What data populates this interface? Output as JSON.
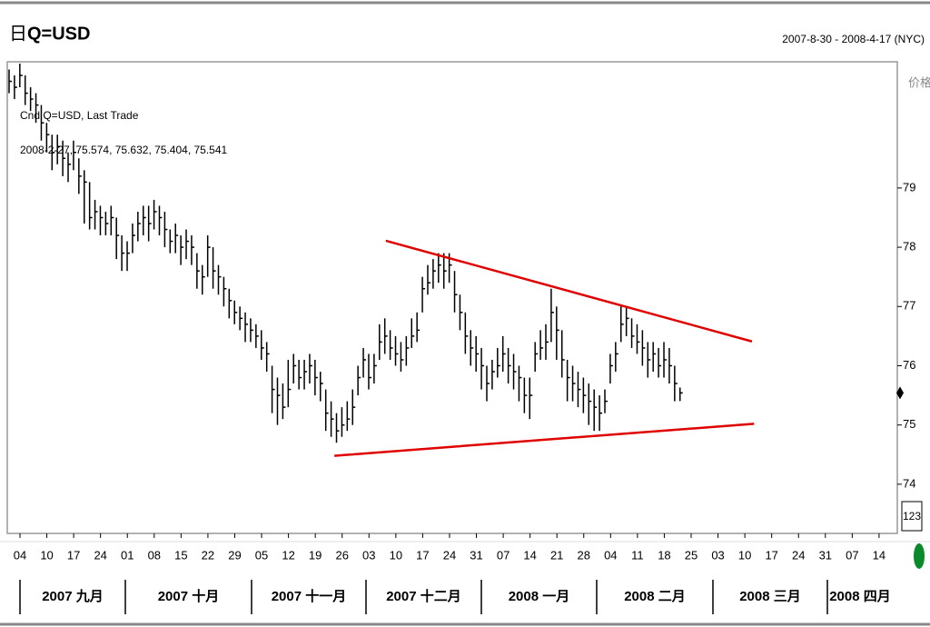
{
  "header": {
    "period_icon": "日",
    "symbol": "Q=USD",
    "date_range": "2007-8-30 - 2008-4-17 (NYC)"
  },
  "chart_data": {
    "type": "ohlc",
    "legend_title": "Cnd Q=USD, Last Trade",
    "legend_values": "2008-2-27, 75.574, 75.632, 75.404, 75.541",
    "y_axis_label": "价格",
    "scale_button": "123",
    "color": "#000000",
    "ylim": [
      73.17,
      81.13
    ],
    "yticks": [
      74,
      75,
      76,
      77,
      78,
      79
    ],
    "x_week_labels": [
      "04",
      "10",
      "17",
      "24",
      "01",
      "08",
      "15",
      "22",
      "29",
      "05",
      "12",
      "19",
      "26",
      "03",
      "10",
      "17",
      "24",
      "31",
      "07",
      "14",
      "21",
      "28",
      "04",
      "11",
      "18",
      "25",
      "03",
      "10",
      "17",
      "24",
      "31",
      "07",
      "14"
    ],
    "x_month_labels": [
      "2007 九月",
      "2007 十月",
      "2007 十一月",
      "2007 十二月",
      "2008 一月",
      "2008 二月",
      "2008 三月",
      "2008 四月"
    ],
    "high": [
      81.0,
      80.9,
      81.1,
      80.9,
      80.7,
      80.6,
      80.4,
      80.1,
      79.9,
      79.9,
      79.8,
      79.6,
      79.8,
      79.5,
      79.3,
      79.1,
      78.8,
      78.7,
      78.6,
      78.7,
      78.5,
      78.2,
      78.1,
      78.4,
      78.6,
      78.7,
      78.7,
      78.8,
      78.7,
      78.6,
      78.3,
      78.4,
      78.2,
      78.3,
      78.2,
      77.9,
      77.7,
      78.2,
      78.0,
      77.7,
      77.5,
      77.3,
      77.1,
      77.0,
      76.9,
      76.8,
      76.7,
      76.6,
      76.4,
      76.0,
      75.8,
      75.7,
      76.1,
      76.2,
      76.1,
      76.1,
      76.2,
      76.1,
      75.9,
      75.6,
      75.4,
      75.2,
      75.3,
      75.4,
      75.6,
      76.0,
      76.3,
      76.2,
      76.2,
      76.7,
      76.8,
      76.6,
      76.5,
      76.4,
      76.5,
      76.8,
      76.9,
      77.5,
      77.7,
      77.8,
      77.9,
      77.9,
      77.9,
      77.6,
      77.2,
      76.9,
      76.6,
      76.5,
      76.3,
      76.0,
      76.1,
      76.3,
      76.5,
      76.3,
      76.2,
      76.0,
      75.8,
      75.8,
      76.4,
      76.6,
      76.7,
      77.3,
      77.0,
      76.6,
      76.1,
      76.0,
      75.9,
      75.8,
      75.7,
      75.6,
      75.5,
      75.6,
      76.2,
      76.4,
      77.0,
      77.0,
      76.8,
      76.7,
      76.6,
      76.4,
      76.4,
      76.3,
      76.4,
      76.3,
      76.0,
      75.632
    ],
    "low": [
      80.6,
      80.5,
      80.7,
      80.4,
      80.3,
      80.1,
      79.8,
      79.6,
      79.3,
      79.4,
      79.2,
      79.1,
      79.3,
      78.9,
      78.4,
      78.3,
      78.3,
      78.2,
      78.2,
      78.2,
      77.8,
      77.6,
      77.6,
      77.9,
      78.1,
      78.2,
      78.1,
      78.3,
      78.2,
      78.0,
      77.9,
      77.9,
      77.7,
      77.8,
      77.7,
      77.3,
      77.2,
      77.5,
      77.3,
      77.2,
      77.0,
      76.8,
      76.7,
      76.6,
      76.4,
      76.4,
      76.3,
      76.1,
      75.9,
      75.2,
      75.0,
      75.1,
      75.3,
      75.7,
      75.6,
      75.6,
      75.7,
      75.5,
      75.4,
      74.9,
      74.8,
      74.7,
      74.8,
      74.9,
      75.0,
      75.5,
      75.8,
      75.6,
      75.7,
      76.1,
      76.2,
      76.1,
      76.0,
      75.9,
      76.0,
      76.3,
      76.4,
      76.9,
      77.2,
      77.3,
      77.4,
      77.3,
      77.4,
      76.9,
      76.6,
      76.2,
      76.0,
      75.9,
      75.6,
      75.4,
      75.6,
      75.8,
      75.9,
      75.7,
      75.6,
      75.4,
      75.2,
      75.1,
      75.9,
      76.1,
      76.1,
      76.4,
      76.1,
      75.8,
      75.4,
      75.4,
      75.3,
      75.2,
      75.0,
      74.9,
      74.9,
      75.2,
      75.7,
      75.9,
      76.4,
      76.5,
      76.3,
      76.2,
      76.0,
      75.8,
      75.9,
      75.8,
      75.8,
      75.7,
      75.4,
      75.404
    ],
    "close": [
      80.8,
      80.7,
      80.9,
      80.6,
      80.5,
      80.4,
      80.1,
      79.9,
      79.6,
      79.7,
      79.5,
      79.4,
      79.6,
      79.2,
      79.1,
      78.5,
      78.6,
      78.5,
      78.4,
      78.5,
      78.2,
      77.9,
      77.9,
      78.2,
      78.4,
      78.5,
      78.4,
      78.6,
      78.5,
      78.3,
      78.1,
      78.2,
      78.0,
      78.1,
      78.0,
      77.6,
      77.5,
      78.0,
      77.6,
      77.5,
      77.3,
      77.1,
      76.9,
      76.8,
      76.7,
      76.6,
      76.5,
      76.3,
      76.2,
      75.6,
      75.5,
      75.3,
      75.6,
      76.0,
      75.8,
      75.9,
      76.0,
      75.8,
      75.7,
      75.2,
      75.1,
      74.9,
      75.0,
      75.1,
      75.3,
      75.8,
      76.1,
      75.8,
      76.0,
      76.4,
      76.5,
      76.3,
      76.2,
      76.1,
      76.3,
      76.5,
      76.6,
      77.3,
      77.4,
      77.6,
      77.7,
      77.6,
      77.7,
      77.2,
      76.9,
      76.5,
      76.3,
      76.2,
      76.0,
      75.7,
      75.9,
      76.0,
      76.2,
      76.0,
      75.9,
      75.8,
      75.5,
      75.5,
      76.2,
      76.3,
      76.4,
      76.9,
      76.6,
      76.1,
      75.8,
      75.7,
      75.6,
      75.5,
      75.4,
      75.3,
      75.2,
      75.4,
      76.0,
      76.2,
      76.7,
      76.8,
      76.5,
      76.4,
      76.3,
      76.1,
      76.2,
      76.0,
      76.1,
      76.0,
      75.7,
      75.541
    ],
    "trend_lines": [
      {
        "color": "#e00000",
        "x": [
          70.2,
          138.4
        ],
        "y": [
          78.11,
          76.41
        ]
      },
      {
        "color": "#e00000",
        "x": [
          60.6,
          138.8
        ],
        "y": [
          74.48,
          75.02
        ]
      }
    ]
  }
}
